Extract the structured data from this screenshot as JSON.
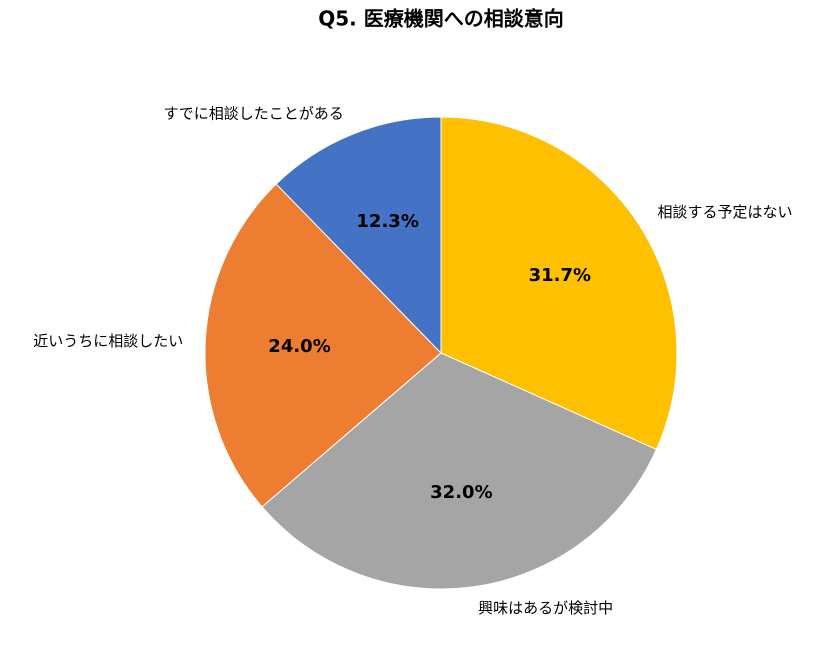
{
  "chart_data": {
    "type": "pie",
    "title": "Q5. 医療機関への相談意向",
    "categories": [
      "相談する予定はない",
      "興味はあるが検討中",
      "近いうちに相談したい",
      "すでに相談したことがある"
    ],
    "values": [
      31.7,
      32.0,
      24.0,
      12.3
    ],
    "value_labels": [
      "31.7%",
      "32.0%",
      "24.0%",
      "12.3%"
    ],
    "colors": [
      "#ffc000",
      "#a5a5a5",
      "#ed7d31",
      "#4472c4"
    ]
  }
}
